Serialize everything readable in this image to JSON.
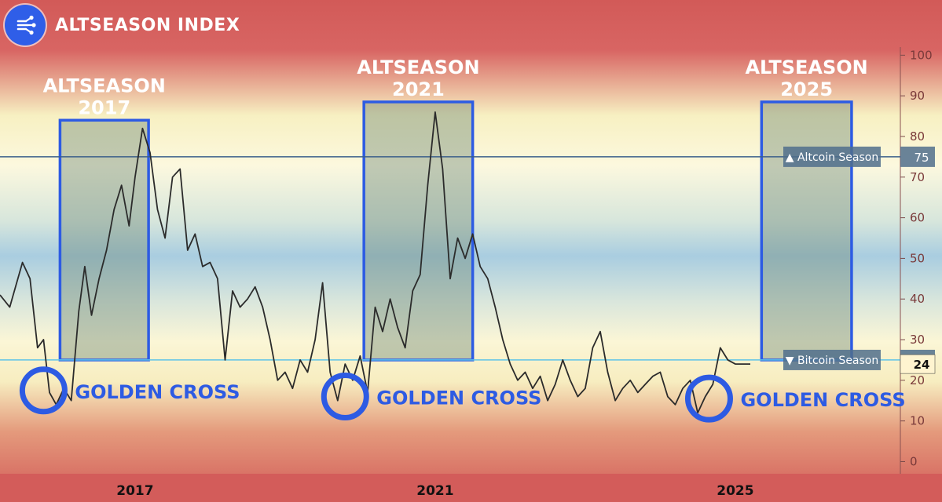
{
  "header": {
    "brand_icon": "connected-nodes-icon",
    "title": "ALTSEASON INDEX"
  },
  "colors": {
    "band_red": "#d25a58",
    "band_yellow": "#f7f0c2",
    "band_blue": "#a9cde0",
    "line": "#2b2b2b",
    "altcoin_line": "#3b5f8a",
    "bitcoin_line": "#5fc4e8",
    "highlight_box": "#2d5be3",
    "annotation_text": "#2d5be3"
  },
  "chart_data": {
    "type": "line",
    "title": "ALTSEASON INDEX",
    "xlabel": "",
    "ylabel": "",
    "x_ticks": [
      "2017",
      "2021",
      "2025"
    ],
    "x_tick_values": [
      2017.0,
      2021.0,
      2025.0
    ],
    "xlim": [
      2015.2,
      2027.2
    ],
    "ylim": [
      -3,
      102
    ],
    "y_ticks": [
      0,
      10,
      20,
      30,
      40,
      50,
      60,
      70,
      80,
      90,
      100
    ],
    "grid": false,
    "series": [
      {
        "x": [
          2015.2,
          2015.33,
          2015.5,
          2015.6,
          2015.7,
          2015.78,
          2015.86,
          2015.95,
          2016.05,
          2016.15,
          2016.25,
          2016.33,
          2016.42,
          2016.52,
          2016.62,
          2016.72,
          2016.82,
          2016.92,
          2017.0,
          2017.1,
          2017.2,
          2017.3,
          2017.4,
          2017.5,
          2017.6,
          2017.7,
          2017.8,
          2017.9,
          2018.0,
          2018.1,
          2018.2,
          2018.3,
          2018.4,
          2018.5,
          2018.6,
          2018.7,
          2018.8,
          2018.9,
          2019.0,
          2019.1,
          2019.2,
          2019.3,
          2019.4,
          2019.5,
          2019.6,
          2019.7,
          2019.8,
          2019.9,
          2020.0,
          2020.1,
          2020.2,
          2020.3,
          2020.4,
          2020.5,
          2020.6,
          2020.7,
          2020.8,
          2020.9,
          2021.0,
          2021.1,
          2021.2,
          2021.3,
          2021.4,
          2021.5,
          2021.6,
          2021.7,
          2021.8,
          2021.9,
          2022.0,
          2022.1,
          2022.2,
          2022.3,
          2022.4,
          2022.5,
          2022.6,
          2022.7,
          2022.8,
          2022.9,
          2023.0,
          2023.1,
          2023.2,
          2023.3,
          2023.4,
          2023.5,
          2023.6,
          2023.7,
          2023.8,
          2023.9,
          2024.0,
          2024.1,
          2024.2,
          2024.3,
          2024.4,
          2024.5,
          2024.6,
          2024.7,
          2024.8,
          2024.9,
          2025.0,
          2025.1,
          2025.2
        ],
        "y": [
          41,
          38,
          49,
          45,
          28,
          30,
          17,
          14,
          18,
          15,
          37,
          48,
          36,
          45,
          52,
          62,
          68,
          58,
          70,
          82,
          76,
          62,
          55,
          70,
          72,
          52,
          56,
          48,
          49,
          45,
          25,
          42,
          38,
          40,
          43,
          38,
          30,
          20,
          22,
          18,
          25,
          22,
          30,
          44,
          22,
          15,
          24,
          20,
          26,
          17,
          38,
          32,
          40,
          33,
          28,
          42,
          46,
          68,
          86,
          72,
          45,
          55,
          50,
          56,
          48,
          45,
          38,
          30,
          24,
          20,
          22,
          18,
          21,
          15,
          19,
          25,
          20,
          16,
          18,
          28,
          32,
          22,
          15,
          18,
          20,
          17,
          19,
          21,
          22,
          16,
          14,
          18,
          20,
          12,
          16,
          19,
          28,
          25,
          24,
          24,
          24
        ]
      }
    ],
    "reference_lines": [
      {
        "value": 75,
        "label": "▲ Altcoin Season",
        "value_label": "75"
      },
      {
        "value": 25,
        "label": "▼ Bitcoin Season",
        "value_label": "25"
      }
    ],
    "current_value": {
      "value": 24,
      "label": "24"
    },
    "highlight_boxes": [
      {
        "label_line1": "ALTSEASON",
        "label_line2": "2017",
        "x0": 2016.0,
        "x1": 2017.18,
        "y0": 25,
        "y1": 84
      },
      {
        "label_line1": "ALTSEASON",
        "label_line2": "2021",
        "x0": 2020.05,
        "x1": 2021.5,
        "y0": 25,
        "y1": 88.5
      },
      {
        "label_line1": "ALTSEASON",
        "label_line2": "2025",
        "x0": 2025.35,
        "x1": 2026.55,
        "y0": 25,
        "y1": 88.5
      }
    ],
    "annotations": [
      {
        "text": "GOLDEN CROSS",
        "x": 2015.78,
        "y": 17.5
      },
      {
        "text": "GOLDEN CROSS",
        "x": 2019.8,
        "y": 16
      },
      {
        "text": "GOLDEN CROSS",
        "x": 2024.65,
        "y": 15.5
      }
    ]
  }
}
